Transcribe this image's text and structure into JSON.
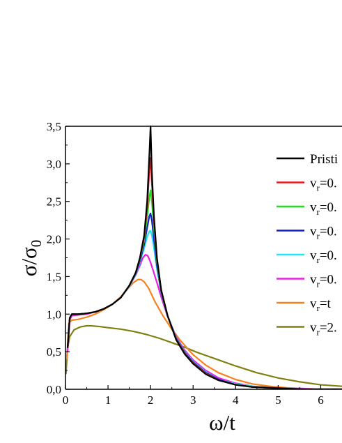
{
  "chart_data": {
    "type": "line",
    "title": "",
    "xlabel": "ω/t",
    "ylabel": "σ/σ0",
    "ylabel_parts": {
      "main": "σ/σ",
      "sub": "0"
    },
    "xlim": [
      0,
      6.5
    ],
    "ylim": [
      0,
      3.5
    ],
    "x_ticks": [
      0,
      1,
      2,
      3,
      4,
      5,
      6
    ],
    "x_tick_labels": [
      "0",
      "1",
      "2",
      "3",
      "4",
      "5",
      "6"
    ],
    "y_ticks": [
      0,
      0.5,
      1,
      1.5,
      2,
      2.5,
      3,
      3.5
    ],
    "y_tick_labels": [
      "0,0",
      "0,5",
      "1,0",
      "1,5",
      "2,0",
      "2,5",
      "3,0",
      "3,5"
    ],
    "grid": false,
    "legend_position": "top-right",
    "series": [
      {
        "name": "Pristi",
        "label_parts": {
          "main": "Pristi",
          "sub": "",
          "tail": ""
        },
        "color": "#000000",
        "x": [
          0.05,
          0.1,
          0.15,
          0.3,
          0.5,
          0.7,
          0.9,
          1.1,
          1.3,
          1.5,
          1.65,
          1.75,
          1.85,
          1.92,
          1.97,
          2.0,
          2.03,
          2.08,
          2.15,
          2.25,
          2.4,
          2.6,
          2.8,
          3.0,
          3.3,
          3.6,
          4.0,
          4.4,
          4.8,
          5.2,
          5.6,
          6.0,
          6.5
        ],
        "y": [
          0.55,
          0.95,
          1.0,
          1.0,
          1.01,
          1.03,
          1.07,
          1.13,
          1.22,
          1.38,
          1.55,
          1.75,
          2.05,
          2.5,
          3.1,
          3.5,
          2.9,
          2.3,
          1.75,
          1.32,
          0.98,
          0.66,
          0.47,
          0.34,
          0.2,
          0.12,
          0.06,
          0.03,
          0.02,
          0.01,
          0.0,
          0.0,
          0.0
        ]
      },
      {
        "name": "vr=0.",
        "label_parts": {
          "main": "v",
          "sub": "r",
          "tail": "=0."
        },
        "color": "#e8141c",
        "x": [
          0.05,
          0.1,
          0.15,
          0.3,
          0.5,
          0.7,
          0.9,
          1.1,
          1.3,
          1.5,
          1.65,
          1.75,
          1.85,
          1.92,
          1.97,
          2.0,
          2.03,
          2.08,
          2.15,
          2.25,
          2.4,
          2.6,
          2.8,
          3.0,
          3.3,
          3.6,
          4.0,
          4.4,
          4.8,
          5.2,
          5.6,
          6.0,
          6.5
        ],
        "y": [
          0.55,
          0.95,
          1.0,
          1.0,
          1.01,
          1.03,
          1.07,
          1.13,
          1.22,
          1.38,
          1.55,
          1.74,
          2.02,
          2.42,
          2.9,
          3.08,
          2.75,
          2.25,
          1.73,
          1.32,
          0.98,
          0.67,
          0.48,
          0.35,
          0.21,
          0.12,
          0.06,
          0.03,
          0.02,
          0.01,
          0.0,
          0.0,
          0.0
        ]
      },
      {
        "name": "vr=0.",
        "label_parts": {
          "main": "v",
          "sub": "r",
          "tail": "=0."
        },
        "color": "#22dd22",
        "x": [
          0.05,
          0.1,
          0.15,
          0.3,
          0.5,
          0.7,
          0.9,
          1.1,
          1.3,
          1.5,
          1.65,
          1.75,
          1.85,
          1.92,
          1.97,
          2.0,
          2.03,
          2.08,
          2.15,
          2.25,
          2.4,
          2.6,
          2.8,
          3.0,
          3.3,
          3.6,
          4.0,
          4.4,
          4.8,
          5.2,
          5.6,
          6.0,
          6.5
        ],
        "y": [
          0.55,
          0.95,
          1.0,
          1.0,
          1.01,
          1.03,
          1.07,
          1.13,
          1.22,
          1.38,
          1.55,
          1.73,
          1.98,
          2.3,
          2.55,
          2.65,
          2.5,
          2.15,
          1.7,
          1.31,
          0.98,
          0.67,
          0.48,
          0.35,
          0.21,
          0.12,
          0.06,
          0.03,
          0.02,
          0.01,
          0.0,
          0.0,
          0.0
        ]
      },
      {
        "name": "vr=0.",
        "label_parts": {
          "main": "v",
          "sub": "r",
          "tail": "=0."
        },
        "color": "#0a1ecc",
        "x": [
          0.05,
          0.1,
          0.15,
          0.3,
          0.5,
          0.7,
          0.9,
          1.1,
          1.3,
          1.5,
          1.65,
          1.75,
          1.85,
          1.92,
          1.97,
          2.0,
          2.03,
          2.08,
          2.15,
          2.25,
          2.4,
          2.6,
          2.8,
          3.0,
          3.3,
          3.6,
          4.0,
          4.4,
          4.8,
          5.2,
          5.6,
          6.0,
          6.5
        ],
        "y": [
          0.55,
          0.95,
          1.0,
          1.0,
          1.01,
          1.03,
          1.07,
          1.13,
          1.22,
          1.38,
          1.54,
          1.71,
          1.93,
          2.15,
          2.3,
          2.34,
          2.25,
          2.0,
          1.65,
          1.3,
          0.98,
          0.68,
          0.49,
          0.36,
          0.22,
          0.13,
          0.06,
          0.03,
          0.02,
          0.01,
          0.0,
          0.0,
          0.0
        ]
      },
      {
        "name": "vr=0.",
        "label_parts": {
          "main": "v",
          "sub": "r",
          "tail": "=0."
        },
        "color": "#22e6f0",
        "x": [
          0.05,
          0.1,
          0.15,
          0.3,
          0.5,
          0.7,
          0.9,
          1.1,
          1.3,
          1.5,
          1.65,
          1.75,
          1.85,
          1.92,
          1.97,
          2.0,
          2.03,
          2.08,
          2.15,
          2.25,
          2.4,
          2.6,
          2.8,
          3.0,
          3.3,
          3.6,
          4.0,
          4.4,
          4.8,
          5.2,
          5.6,
          6.0,
          6.5
        ],
        "y": [
          0.55,
          0.95,
          1.0,
          1.0,
          1.01,
          1.03,
          1.07,
          1.13,
          1.22,
          1.37,
          1.53,
          1.69,
          1.88,
          2.03,
          2.1,
          2.11,
          2.05,
          1.88,
          1.6,
          1.29,
          0.98,
          0.69,
          0.5,
          0.37,
          0.23,
          0.13,
          0.07,
          0.04,
          0.02,
          0.01,
          0.0,
          0.0,
          0.0
        ]
      },
      {
        "name": "vr=0.",
        "label_parts": {
          "main": "v",
          "sub": "r",
          "tail": "=0."
        },
        "color": "#e81ee0",
        "x": [
          0.05,
          0.1,
          0.15,
          0.3,
          0.5,
          0.7,
          0.9,
          1.1,
          1.3,
          1.5,
          1.65,
          1.75,
          1.82,
          1.88,
          1.93,
          1.98,
          2.05,
          2.15,
          2.25,
          2.4,
          2.6,
          2.8,
          3.0,
          3.3,
          3.6,
          4.0,
          4.4,
          4.8,
          5.2,
          5.6,
          6.0,
          6.5
        ],
        "y": [
          0.5,
          0.92,
          0.98,
          0.99,
          1.0,
          1.03,
          1.07,
          1.13,
          1.22,
          1.37,
          1.52,
          1.65,
          1.75,
          1.79,
          1.78,
          1.72,
          1.6,
          1.42,
          1.23,
          0.97,
          0.7,
          0.52,
          0.39,
          0.25,
          0.15,
          0.08,
          0.04,
          0.02,
          0.01,
          0.01,
          0.0,
          0.0
        ]
      },
      {
        "name": "vr=t",
        "label_parts": {
          "main": "v",
          "sub": "r",
          "tail": "=t"
        },
        "color": "#f5821f",
        "x": [
          0.03,
          0.08,
          0.15,
          0.3,
          0.5,
          0.7,
          0.9,
          1.1,
          1.3,
          1.5,
          1.6,
          1.7,
          1.78,
          1.85,
          1.95,
          2.1,
          2.3,
          2.5,
          2.7,
          3.0,
          3.3,
          3.6,
          4.0,
          4.4,
          4.8,
          5.2,
          5.6,
          6.0,
          6.5
        ],
        "y": [
          0.4,
          0.88,
          0.92,
          0.93,
          0.96,
          1.0,
          1.06,
          1.13,
          1.23,
          1.36,
          1.42,
          1.46,
          1.46,
          1.43,
          1.35,
          1.17,
          0.97,
          0.8,
          0.65,
          0.46,
          0.32,
          0.22,
          0.13,
          0.07,
          0.04,
          0.02,
          0.01,
          0.0,
          0.0
        ]
      },
      {
        "name": "vr=2.",
        "label_parts": {
          "main": "v",
          "sub": "r",
          "tail": "=2."
        },
        "color": "#808010",
        "x": [
          0.01,
          0.05,
          0.1,
          0.2,
          0.35,
          0.5,
          0.6,
          0.8,
          1.0,
          1.3,
          1.6,
          1.9,
          2.2,
          2.5,
          2.8,
          3.1,
          3.5,
          4.0,
          4.5,
          5.0,
          5.5,
          6.0,
          6.5
        ],
        "y": [
          0.2,
          0.55,
          0.7,
          0.79,
          0.83,
          0.845,
          0.845,
          0.835,
          0.82,
          0.8,
          0.77,
          0.73,
          0.68,
          0.62,
          0.56,
          0.49,
          0.41,
          0.31,
          0.22,
          0.15,
          0.1,
          0.06,
          0.04
        ]
      }
    ]
  }
}
